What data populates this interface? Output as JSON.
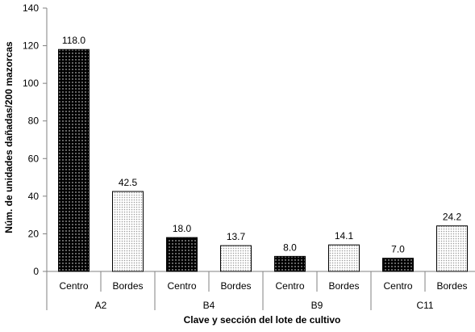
{
  "chart_data": {
    "type": "bar",
    "title": "",
    "xlabel": "Clave y sección del lote de cultivo",
    "ylabel": "Núm. de unidades dañadas/200 mazorcas",
    "ylim": [
      0,
      140
    ],
    "yticks": [
      0,
      20,
      40,
      60,
      80,
      100,
      120,
      140
    ],
    "grid": false,
    "legend": "none",
    "groups": [
      "A2",
      "B4",
      "B9",
      "C11"
    ],
    "sections": [
      "Centro",
      "Bordes"
    ],
    "bars": [
      {
        "group": "A2",
        "section": "Centro",
        "value": 118.0,
        "label": "118.0"
      },
      {
        "group": "A2",
        "section": "Bordes",
        "value": 42.5,
        "label": "42.5"
      },
      {
        "group": "B4",
        "section": "Centro",
        "value": 18.0,
        "label": "18.0"
      },
      {
        "group": "B4",
        "section": "Bordes",
        "value": 13.7,
        "label": "13.7"
      },
      {
        "group": "B9",
        "section": "Centro",
        "value": 8.0,
        "label": "8.0"
      },
      {
        "group": "B9",
        "section": "Bordes",
        "value": 14.1,
        "label": "14.1"
      },
      {
        "group": "C11",
        "section": "Centro",
        "value": 7.0,
        "label": "7.0"
      },
      {
        "group": "C11",
        "section": "Bordes",
        "value": 24.2,
        "label": "24.2"
      }
    ],
    "colors": {
      "Centro": "#000000",
      "Bordes": "#ffffff",
      "dots_centro": "#ffffff",
      "dots_bordes": "#9a9a9a",
      "axis": "#808080"
    }
  }
}
